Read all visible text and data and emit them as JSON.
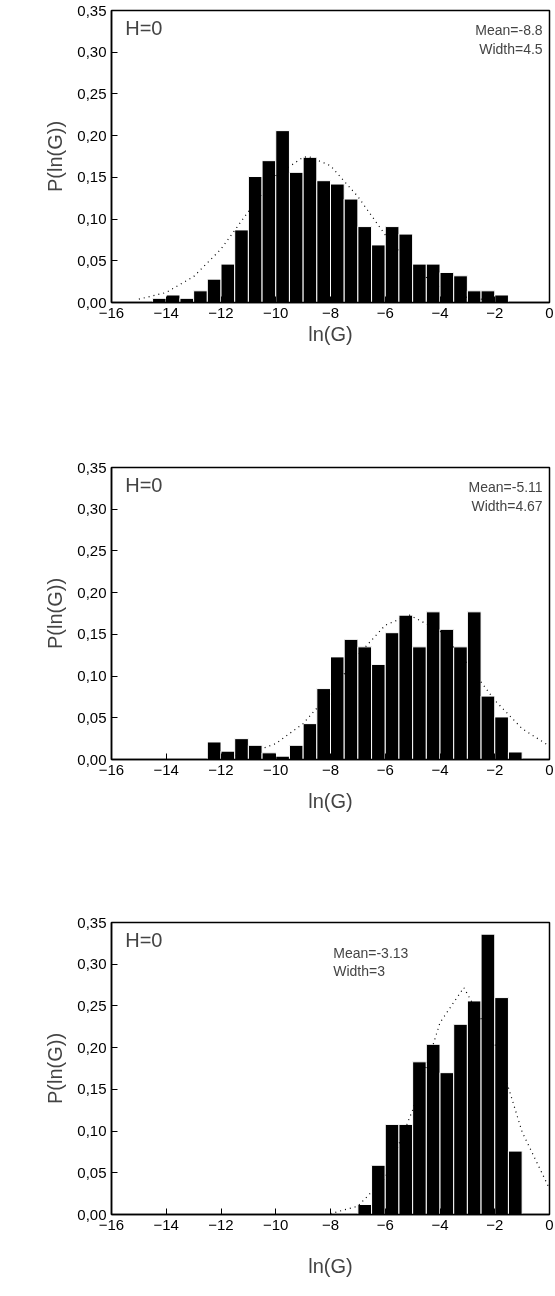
{
  "chart_data": [
    {
      "type": "histogram",
      "xlabel": "ln(G)",
      "ylabel": "P(ln(G))",
      "annotations": [
        "H=0",
        "Mean=-8.8",
        "Width=4.5"
      ],
      "xlim": [
        -16,
        0
      ],
      "ylim": [
        0,
        0.35
      ],
      "xticks": [
        -16,
        -14,
        -12,
        -10,
        -8,
        -6,
        -4,
        -2,
        0
      ],
      "yticks": [
        {
          "value": 0,
          "label": "0,00"
        },
        {
          "value": 0.05,
          "label": "0,05"
        },
        {
          "value": 0.1,
          "label": "0,10"
        },
        {
          "value": 0.15,
          "label": "0,15"
        },
        {
          "value": 0.2,
          "label": "0,20"
        },
        {
          "value": 0.25,
          "label": "0,25"
        },
        {
          "value": 0.3,
          "label": "0,30"
        },
        {
          "value": 0.35,
          "label": "0,35"
        }
      ],
      "grid": false,
      "series": [
        {
          "color": "#000000",
          "bins": [
            -15,
            -14.5,
            -14,
            -13.5,
            -13,
            -12.5,
            -12,
            -11.5,
            -11,
            -10.5,
            -10,
            -9.5,
            -9,
            -8.5,
            -8,
            -7.5,
            -7,
            -6.5,
            -6,
            -5.5,
            -5,
            -4.5,
            -4,
            -3.5,
            -3,
            -2.5,
            -2,
            -1.5
          ],
          "values": [
            0,
            0.005,
            0.009,
            0.005,
            0.014,
            0.028,
            0.046,
            0.087,
            0.151,
            0.17,
            0.206,
            0.156,
            0.174,
            0.146,
            0.142,
            0.124,
            0.091,
            0.069,
            0.091,
            0.082,
            0.046,
            0.046,
            0.036,
            0.032,
            0.014,
            0.014,
            0.009
          ]
        },
        {
          "type": "line",
          "line_style": "dotted",
          "color": "#000000",
          "x": [
            -15,
            -14,
            -13,
            -12,
            -11,
            -10,
            -9,
            -8.8,
            -8,
            -7,
            -6,
            -5,
            -4,
            -3,
            -2
          ],
          "values": [
            0.004,
            0.012,
            0.031,
            0.064,
            0.109,
            0.152,
            0.174,
            0.175,
            0.164,
            0.127,
            0.081,
            0.042,
            0.018,
            0.006,
            0.002
          ]
        }
      ]
    },
    {
      "type": "histogram",
      "xlabel": "ln(G)",
      "ylabel": "P(ln(G))",
      "annotations": [
        "H=0",
        "Mean=-5.11",
        "Width=4.67"
      ],
      "xlim": [
        -16,
        0
      ],
      "ylim": [
        0,
        0.35
      ],
      "xticks": [
        -16,
        -14,
        -12,
        -10,
        -8,
        -6,
        -4,
        -2,
        0
      ],
      "yticks": [
        {
          "value": 0,
          "label": "0,00"
        },
        {
          "value": 0.05,
          "label": "0,05"
        },
        {
          "value": 0.1,
          "label": "0,10"
        },
        {
          "value": 0.15,
          "label": "0,15"
        },
        {
          "value": 0.2,
          "label": "0,20"
        },
        {
          "value": 0.25,
          "label": "0,25"
        },
        {
          "value": 0.3,
          "label": "0,30"
        },
        {
          "value": 0.35,
          "label": "0,35"
        }
      ],
      "grid": false,
      "series": [
        {
          "color": "#000000",
          "bins": [
            -15,
            -14.5,
            -14,
            -13.5,
            -13,
            -12.5,
            -12,
            -11.5,
            -11,
            -10.5,
            -10,
            -9.5,
            -9,
            -8.5,
            -8,
            -7.5,
            -7,
            -6.5,
            -6,
            -5.5,
            -5,
            -4.5,
            -4,
            -3.5,
            -3,
            -2.5,
            -2,
            -1.5,
            -1
          ],
          "values": [
            0,
            0,
            0,
            0,
            0,
            0.021,
            0.01,
            0.025,
            0.017,
            0.008,
            0.004,
            0.017,
            0.043,
            0.085,
            0.123,
            0.144,
            0.135,
            0.114,
            0.152,
            0.173,
            0.135,
            0.177,
            0.156,
            0.135,
            0.177,
            0.076,
            0.051,
            0.009
          ]
        },
        {
          "type": "line",
          "line_style": "dotted",
          "color": "#000000",
          "x": [
            -12,
            -11,
            -10,
            -9,
            -8,
            -7,
            -6,
            -5.11,
            -4,
            -3,
            -2,
            -1,
            0
          ],
          "values": [
            0.002,
            0.007,
            0.019,
            0.043,
            0.08,
            0.125,
            0.161,
            0.173,
            0.154,
            0.115,
            0.071,
            0.037,
            0.016
          ]
        }
      ]
    },
    {
      "type": "histogram",
      "xlabel": "ln(G)",
      "ylabel": "P(ln(G))",
      "annotations": [
        "H=0",
        "Mean=-3.13",
        "Width=3"
      ],
      "xlim": [
        -16,
        0
      ],
      "ylim": [
        0,
        0.35
      ],
      "xticks": [
        -16,
        -14,
        -12,
        -10,
        -8,
        -6,
        -4,
        -2,
        0
      ],
      "yticks": [
        {
          "value": 0,
          "label": "0,00"
        },
        {
          "value": 0.05,
          "label": "0,05"
        },
        {
          "value": 0.1,
          "label": "0,10"
        },
        {
          "value": 0.15,
          "label": "0,15"
        },
        {
          "value": 0.2,
          "label": "0,20"
        },
        {
          "value": 0.25,
          "label": "0,25"
        },
        {
          "value": 0.3,
          "label": "0,30"
        },
        {
          "value": 0.35,
          "label": "0,35"
        }
      ],
      "grid": false,
      "series": [
        {
          "color": "#000000",
          "bins": [
            -15,
            -14.5,
            -14,
            -13.5,
            -13,
            -12.5,
            -12,
            -11.5,
            -11,
            -10.5,
            -10,
            -9.5,
            -9,
            -8.5,
            -8,
            -7.5,
            -7,
            -6.5,
            -6,
            -5.5,
            -5,
            -4.5,
            -4,
            -3.5,
            -3,
            -2.5,
            -2,
            -1.5,
            -1
          ],
          "values": [
            0,
            0,
            0,
            0,
            0,
            0,
            0,
            0,
            0,
            0,
            0,
            0,
            0,
            0,
            0,
            0,
            0.012,
            0.059,
            0.108,
            0.108,
            0.183,
            0.204,
            0.17,
            0.228,
            0.256,
            0.336,
            0.26,
            0.076
          ]
        },
        {
          "type": "line",
          "line_style": "dotted",
          "color": "#000000",
          "x": [
            -8,
            -7,
            -6,
            -5,
            -4,
            -3.13,
            -2,
            -1,
            0
          ],
          "values": [
            0.001,
            0.01,
            0.044,
            0.125,
            0.23,
            0.272,
            0.205,
            0.099,
            0.031
          ]
        }
      ]
    }
  ]
}
